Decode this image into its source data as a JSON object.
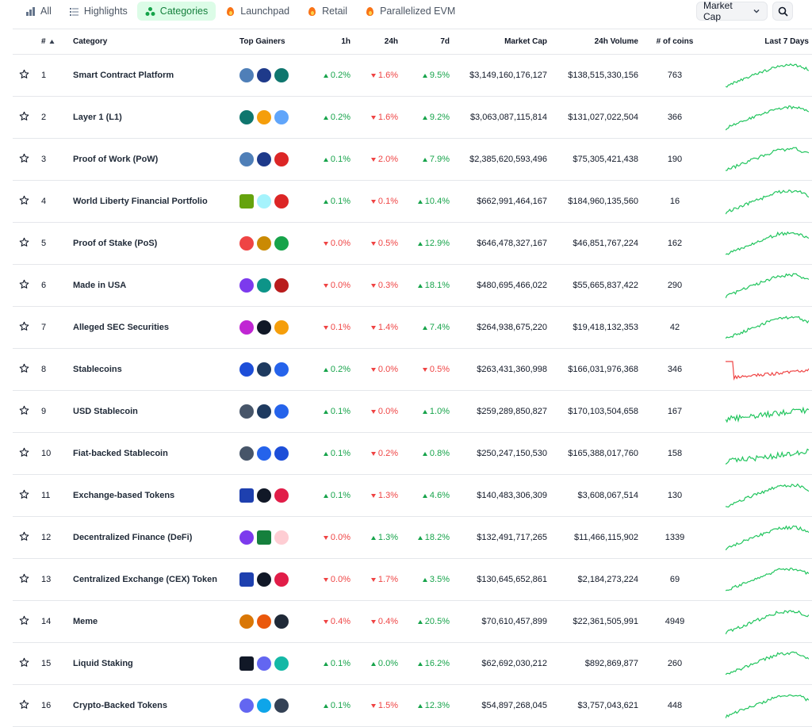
{
  "tabs": [
    {
      "label": "All",
      "icon": "bar-chart-icon",
      "active": false
    },
    {
      "label": "Highlights",
      "icon": "list-icon",
      "active": false
    },
    {
      "label": "Categories",
      "icon": "shapes-icon",
      "active": true
    },
    {
      "label": "Launchpad",
      "icon": "fire-icon",
      "active": false
    },
    {
      "label": "Retail",
      "icon": "fire-icon",
      "active": false
    },
    {
      "label": "Parallelized EVM",
      "icon": "fire-icon",
      "active": false
    }
  ],
  "sort_select": {
    "value": "Market Cap"
  },
  "headers": {
    "rank": "#",
    "category": "Category",
    "top_gainers": "Top Gainers",
    "h1": "1h",
    "h24": "24h",
    "d7": "7d",
    "market_cap": "Market Cap",
    "volume": "24h Volume",
    "coins": "# of coins",
    "last7": "Last 7 Days"
  },
  "colors": {
    "up": "#16a34a",
    "down": "#ef4444",
    "spark_up": "#22c55e",
    "spark_down": "#ef4444"
  },
  "rows": [
    {
      "rank": "1",
      "category": "Smart Contract Platform",
      "h1": "0.2%",
      "h1_dir": "up",
      "h24": "1.6%",
      "h24_dir": "down",
      "d7": "9.5%",
      "d7_dir": "up",
      "market_cap": "$3,149,160,176,127",
      "volume": "$138,515,330,156",
      "coins": "763",
      "spark": "up",
      "gainers": [
        {
          "color": "#4f7fb8",
          "icon": "shield-token-icon"
        },
        {
          "color": "#1e3a8a",
          "icon": "p-token-icon"
        },
        {
          "color": "#0f766e",
          "icon": "x-token-icon"
        }
      ]
    },
    {
      "rank": "2",
      "category": "Layer 1 (L1)",
      "h1": "0.2%",
      "h1_dir": "up",
      "h24": "1.6%",
      "h24_dir": "down",
      "d7": "9.2%",
      "d7_dir": "up",
      "market_cap": "$3,063,087,115,814",
      "volume": "$131,027,022,504",
      "coins": "366",
      "spark": "up",
      "gainers": [
        {
          "color": "#0f766e",
          "icon": "x-token-icon"
        },
        {
          "color": "#f59e0b",
          "icon": "pinwheel-token-icon"
        },
        {
          "color": "#60a5fa",
          "icon": "gear-token-icon"
        }
      ]
    },
    {
      "rank": "3",
      "category": "Proof of Work (PoW)",
      "h1": "0.1%",
      "h1_dir": "up",
      "h24": "2.0%",
      "h24_dir": "down",
      "d7": "7.9%",
      "d7_dir": "up",
      "market_cap": "$2,385,620,593,496",
      "volume": "$75,305,421,438",
      "coins": "190",
      "spark": "up",
      "gainers": [
        {
          "color": "#4f7fb8",
          "icon": "shield-token-icon"
        },
        {
          "color": "#1e3a8a",
          "icon": "p-token-icon"
        },
        {
          "color": "#dc2626",
          "icon": "a-token-icon"
        }
      ]
    },
    {
      "rank": "4",
      "category": "World Liberty Financial Portfolio",
      "h1": "0.1%",
      "h1_dir": "up",
      "h24": "0.1%",
      "h24_dir": "down",
      "d7": "10.4%",
      "d7_dir": "up",
      "market_cap": "$662,991,464,167",
      "volume": "$184,960,135,560",
      "coins": "16",
      "spark": "up",
      "gainers": [
        {
          "color": "#65a30d",
          "icon": "frog-token-icon"
        },
        {
          "color": "#a5f3fc",
          "icon": "burst-token-icon"
        },
        {
          "color": "#dc2626",
          "icon": "s-token-icon"
        }
      ]
    },
    {
      "rank": "5",
      "category": "Proof of Stake (PoS)",
      "h1": "0.0%",
      "h1_dir": "down",
      "h24": "0.5%",
      "h24_dir": "down",
      "d7": "12.9%",
      "d7_dir": "up",
      "market_cap": "$646,478,327,167",
      "volume": "$46,851,767,224",
      "coins": "162",
      "spark": "up",
      "gainers": [
        {
          "color": "#ef4444",
          "icon": "rainbow-token-icon"
        },
        {
          "color": "#ca8a04",
          "icon": "pepe-token-icon"
        },
        {
          "color": "#16a34a",
          "icon": "frame-token-icon"
        }
      ]
    },
    {
      "rank": "6",
      "category": "Made in USA",
      "h1": "0.0%",
      "h1_dir": "down",
      "h24": "0.3%",
      "h24_dir": "down",
      "d7": "18.1%",
      "d7_dir": "up",
      "market_cap": "$480,695,466,022",
      "volume": "$55,665,837,422",
      "coins": "290",
      "spark": "up",
      "gainers": [
        {
          "color": "#7c3aed",
          "icon": "hex-token-icon"
        },
        {
          "color": "#0d9488",
          "icon": "s-token-icon"
        },
        {
          "color": "#b91c1c",
          "icon": "flag-token-icon"
        }
      ]
    },
    {
      "rank": "7",
      "category": "Alleged SEC Securities",
      "h1": "0.1%",
      "h1_dir": "down",
      "h24": "1.4%",
      "h24_dir": "down",
      "d7": "7.4%",
      "d7_dir": "up",
      "market_cap": "$264,938,675,220",
      "volume": "$19,418,132,353",
      "coins": "42",
      "spark": "up",
      "gainers": [
        {
          "color": "#c026d3",
          "icon": "ring-token-icon"
        },
        {
          "color": "#111827",
          "icon": "chain-token-icon"
        },
        {
          "color": "#f59e0b",
          "icon": "diamond-token-icon"
        }
      ]
    },
    {
      "rank": "8",
      "category": "Stablecoins",
      "h1": "0.2%",
      "h1_dir": "up",
      "h24": "0.0%",
      "h24_dir": "down",
      "d7": "0.5%",
      "d7_dir": "down",
      "market_cap": "$263,431,360,998",
      "volume": "$166,031,976,368",
      "coins": "346",
      "spark": "down",
      "gainers": [
        {
          "color": "#1d4ed8",
          "icon": "usds-token-icon"
        },
        {
          "color": "#1e3a5f",
          "icon": "anchor-token-icon"
        },
        {
          "color": "#2563eb",
          "icon": "flag-token-icon"
        }
      ]
    },
    {
      "rank": "9",
      "category": "USD Stablecoin",
      "h1": "0.1%",
      "h1_dir": "up",
      "h24": "0.0%",
      "h24_dir": "down",
      "d7": "1.0%",
      "d7_dir": "up",
      "market_cap": "$259,289,850,827",
      "volume": "$170,103,504,658",
      "coins": "167",
      "spark": "flat",
      "gainers": [
        {
          "color": "#475569",
          "icon": "usd-token-icon"
        },
        {
          "color": "#1e3a5f",
          "icon": "anchor-token-icon"
        },
        {
          "color": "#2563eb",
          "icon": "flag-token-icon"
        }
      ]
    },
    {
      "rank": "10",
      "category": "Fiat-backed Stablecoin",
      "h1": "0.1%",
      "h1_dir": "up",
      "h24": "0.2%",
      "h24_dir": "down",
      "d7": "0.8%",
      "d7_dir": "up",
      "market_cap": "$250,247,150,530",
      "volume": "$165,388,017,760",
      "coins": "158",
      "spark": "flat",
      "gainers": [
        {
          "color": "#475569",
          "icon": "usd-token-icon"
        },
        {
          "color": "#2563eb",
          "icon": "flag-token-icon"
        },
        {
          "color": "#1d4ed8",
          "icon": "g-token-icon"
        }
      ]
    },
    {
      "rank": "11",
      "category": "Exchange-based Tokens",
      "h1": "0.1%",
      "h1_dir": "up",
      "h24": "1.3%",
      "h24_dir": "down",
      "d7": "4.6%",
      "d7_dir": "up",
      "market_cap": "$140,483,306,309",
      "volume": "$3,608,067,514",
      "coins": "130",
      "spark": "up",
      "gainers": [
        {
          "color": "#1e40af",
          "icon": "b-token-icon"
        },
        {
          "color": "#111827",
          "icon": "la-token-icon"
        },
        {
          "color": "#e11d48",
          "icon": "lock-token-icon"
        }
      ]
    },
    {
      "rank": "12",
      "category": "Decentralized Finance (DeFi)",
      "h1": "0.0%",
      "h1_dir": "down",
      "h24": "1.3%",
      "h24_dir": "up",
      "d7": "18.2%",
      "d7_dir": "up",
      "market_cap": "$132,491,717,265",
      "volume": "$11,466,115,902",
      "coins": "1339",
      "spark": "up",
      "gainers": [
        {
          "color": "#7c3aed",
          "icon": "infinity-token-icon"
        },
        {
          "color": "#15803d",
          "icon": "square-token-icon"
        },
        {
          "color": "#fecdd3",
          "icon": "bug-token-icon"
        }
      ]
    },
    {
      "rank": "13",
      "category": "Centralized Exchange (CEX) Token",
      "h1": "0.0%",
      "h1_dir": "down",
      "h24": "1.7%",
      "h24_dir": "down",
      "d7": "3.5%",
      "d7_dir": "up",
      "market_cap": "$130,645,652,861",
      "volume": "$2,184,273,224",
      "coins": "69",
      "spark": "up",
      "gainers": [
        {
          "color": "#1e40af",
          "icon": "b-token-icon"
        },
        {
          "color": "#111827",
          "icon": "la-token-icon"
        },
        {
          "color": "#e11d48",
          "icon": "lock-token-icon"
        }
      ]
    },
    {
      "rank": "14",
      "category": "Meme",
      "h1": "0.4%",
      "h1_dir": "down",
      "h24": "0.4%",
      "h24_dir": "down",
      "d7": "20.5%",
      "d7_dir": "up",
      "market_cap": "$70,610,457,899",
      "volume": "$22,361,505,991",
      "coins": "4949",
      "spark": "up",
      "gainers": [
        {
          "color": "#d97706",
          "icon": "dog-token-icon"
        },
        {
          "color": "#ea580c",
          "icon": "lion-token-icon"
        },
        {
          "color": "#1f2937",
          "icon": "dot-token-icon"
        }
      ]
    },
    {
      "rank": "15",
      "category": "Liquid Staking",
      "h1": "0.1%",
      "h1_dir": "up",
      "h24": "0.0%",
      "h24_dir": "up",
      "d7": "16.2%",
      "d7_dir": "up",
      "market_cap": "$62,692,030,212",
      "volume": "$892,869,877",
      "coins": "260",
      "spark": "up",
      "gainers": [
        {
          "color": "#111827",
          "icon": "ep-token-icon"
        },
        {
          "color": "#6366f1",
          "icon": "cube-token-icon"
        },
        {
          "color": "#14b8a6",
          "icon": "gem-token-icon"
        }
      ]
    },
    {
      "rank": "16",
      "category": "Crypto-Backed Tokens",
      "h1": "0.1%",
      "h1_dir": "up",
      "h24": "1.5%",
      "h24_dir": "down",
      "d7": "12.3%",
      "d7_dir": "up",
      "market_cap": "$54,897,268,045",
      "volume": "$3,757,043,621",
      "coins": "448",
      "spark": "up",
      "gainers": [
        {
          "color": "#6366f1",
          "icon": "compass-token-icon"
        },
        {
          "color": "#0ea5e9",
          "icon": "snowflake-token-icon"
        },
        {
          "color": "#334155",
          "icon": "horse-token-icon"
        }
      ]
    }
  ]
}
